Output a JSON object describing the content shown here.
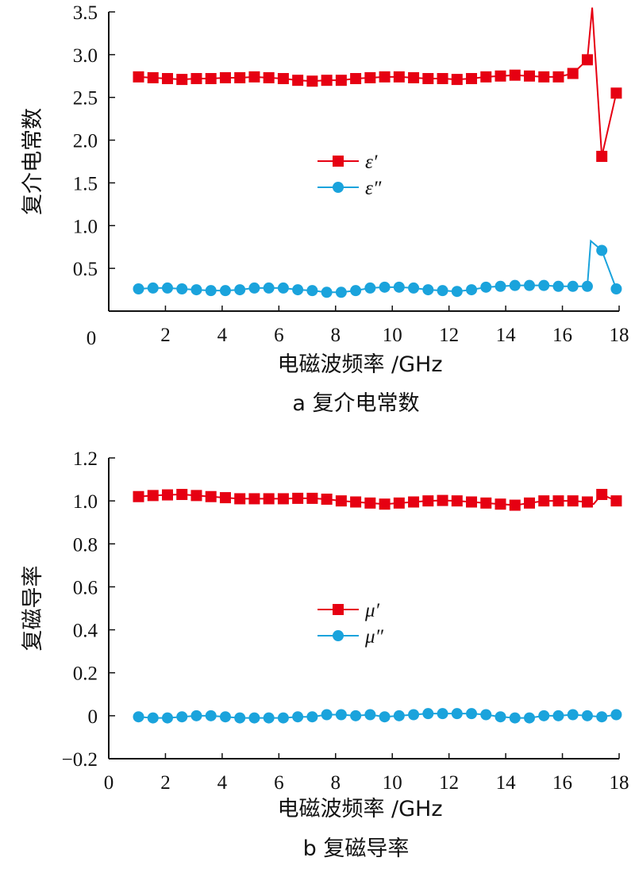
{
  "chart_data": [
    {
      "type": "line",
      "caption": "a 复介电常数",
      "xlabel": "电磁波频率 /GHz",
      "ylabel": "复介电常数",
      "xlim": [
        0,
        18
      ],
      "ylim": [
        0,
        3.5
      ],
      "xticks": [
        "0",
        "2",
        "4",
        "6",
        "8",
        "10",
        "12",
        "14",
        "16",
        "18"
      ],
      "yticks": [
        "0.5",
        "1.0",
        "1.5",
        "2.0",
        "2.5",
        "3.0",
        "3.5"
      ],
      "origin_label": "0",
      "grid": false,
      "legend": "center-left",
      "series": [
        {
          "name": "ε′",
          "marker": "square",
          "color": "#e60012",
          "values": [
            2.74,
            2.73,
            2.72,
            2.71,
            2.72,
            2.72,
            2.73,
            2.73,
            2.74,
            2.73,
            2.72,
            2.7,
            2.69,
            2.7,
            2.7,
            2.72,
            2.73,
            2.74,
            2.74,
            2.73,
            2.72,
            2.72,
            2.71,
            2.72,
            2.74,
            2.75,
            2.76,
            2.75,
            2.74,
            2.74,
            2.78,
            2.94,
            1.81,
            2.55
          ],
          "unmarked_points": [
            [
              17.05,
              3.55
            ]
          ]
        },
        {
          "name": "ε″",
          "marker": "circle",
          "color": "#1aa3dc",
          "values": [
            0.26,
            0.27,
            0.27,
            0.26,
            0.25,
            0.24,
            0.24,
            0.25,
            0.27,
            0.27,
            0.27,
            0.25,
            0.24,
            0.22,
            0.22,
            0.24,
            0.27,
            0.28,
            0.28,
            0.27,
            0.25,
            0.24,
            0.23,
            0.25,
            0.28,
            0.29,
            0.3,
            0.3,
            0.3,
            0.29,
            0.29,
            0.29,
            0.71,
            0.26
          ],
          "unmarked_points": [
            [
              17.0,
              0.82
            ]
          ]
        }
      ],
      "x_start": 1.05,
      "x_end": 17.9
    },
    {
      "type": "line",
      "caption": "b 复磁导率",
      "xlabel": "电磁波频率 /GHz",
      "ylabel": "复磁导率",
      "xlim": [
        0,
        18
      ],
      "ylim": [
        -0.2,
        1.2
      ],
      "xticks": [
        "0",
        "2",
        "4",
        "6",
        "8",
        "10",
        "12",
        "14",
        "16",
        "18"
      ],
      "yticks": [
        "−0.2",
        "0",
        "0.2",
        "0.4",
        "0.6",
        "0.8",
        "1.0",
        "1.2"
      ],
      "grid": false,
      "legend": "center",
      "series": [
        {
          "name": "μ′",
          "marker": "square",
          "color": "#e60012",
          "values": [
            1.02,
            1.025,
            1.028,
            1.03,
            1.025,
            1.02,
            1.015,
            1.01,
            1.01,
            1.01,
            1.01,
            1.012,
            1.012,
            1.008,
            1.0,
            0.995,
            0.99,
            0.985,
            0.99,
            0.995,
            1.0,
            1.002,
            1.0,
            0.995,
            0.99,
            0.985,
            0.98,
            0.99,
            1.0,
            1.0,
            1.0,
            0.995,
            1.03,
            1.0
          ],
          "unmarked_points": [
            [
              17.1,
              0.985
            ]
          ]
        },
        {
          "name": "μ″",
          "marker": "circle",
          "color": "#1aa3dc",
          "values": [
            -0.005,
            -0.01,
            -0.01,
            -0.005,
            0.0,
            0.0,
            -0.005,
            -0.01,
            -0.01,
            -0.01,
            -0.01,
            -0.005,
            -0.005,
            0.005,
            0.005,
            0.0,
            0.005,
            -0.005,
            0.0,
            0.005,
            0.01,
            0.01,
            0.01,
            0.01,
            0.005,
            -0.005,
            -0.01,
            -0.01,
            0.0,
            0.0,
            0.005,
            0.0,
            -0.005,
            0.005
          ],
          "unmarked_points": []
        }
      ],
      "x_start": 1.05,
      "x_end": 17.9
    }
  ]
}
